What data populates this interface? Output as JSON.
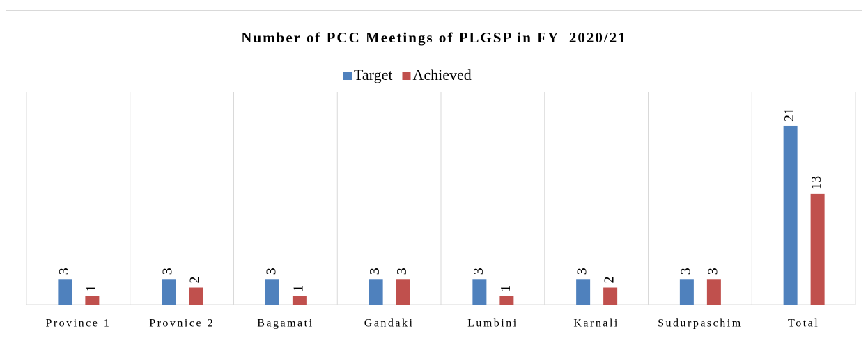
{
  "chart_data": {
    "type": "bar",
    "title": "Number of PCC Meetings of PLGSP in FY  2020/21",
    "categories": [
      "Province 1",
      "Provnice 2",
      "Bagamati",
      "Gandaki",
      "Lumbini",
      "Karnali",
      "Sudurpaschim",
      "Total"
    ],
    "series": [
      {
        "name": "Target",
        "color": "#4f81bd",
        "values": [
          3,
          3,
          3,
          3,
          3,
          3,
          3,
          21
        ]
      },
      {
        "name": "Achieved",
        "color": "#c0504d",
        "values": [
          1,
          2,
          1,
          3,
          1,
          2,
          3,
          13
        ]
      }
    ],
    "ylim": [
      0,
      25
    ],
    "legend": "top"
  }
}
